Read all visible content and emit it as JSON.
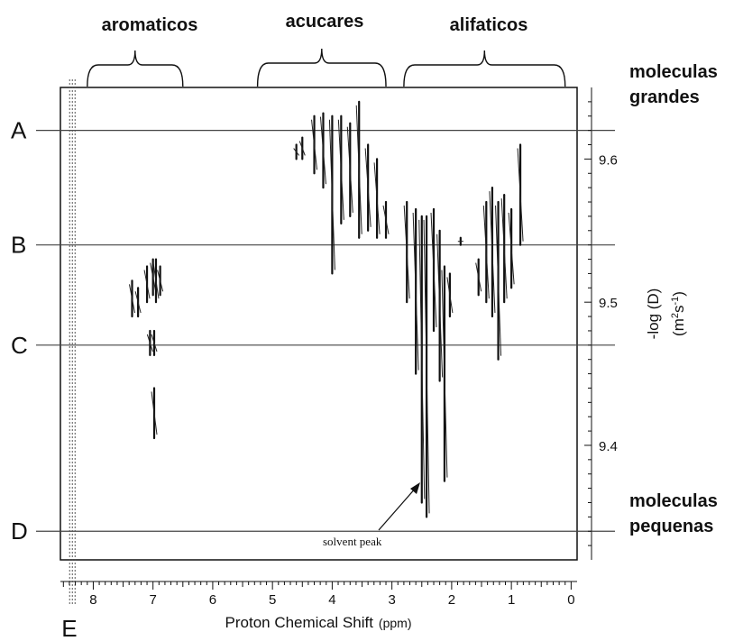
{
  "chart_data": {
    "type": "scatter",
    "xlabel": "Proton Chemical Shift",
    "xunit": "(ppm)",
    "ylabel": "-log (D)",
    "yunit_base": "(m",
    "yunit_sup1": "2",
    "yunit_mid": "s",
    "yunit_sup2": "-1",
    "yunit_end": ")",
    "xlim": [
      8.55,
      -0.1
    ],
    "ylim": [
      9.32,
      9.65
    ],
    "x_reversed": true,
    "x_ticks": [
      8,
      7,
      6,
      5,
      4,
      3,
      2,
      1,
      0
    ],
    "y_ticks": [
      9.6,
      9.5,
      9.4
    ],
    "regions": [
      {
        "label": "aromaticos",
        "x_from": 8.1,
        "x_to": 6.5
      },
      {
        "label": "acucares",
        "x_from": 5.25,
        "x_to": 3.1
      },
      {
        "label": "alifaticos",
        "x_from": 2.8,
        "x_to": 0.1
      }
    ],
    "reference_lines": [
      {
        "label": "A",
        "y": 9.62
      },
      {
        "label": "B",
        "y": 9.54
      },
      {
        "label": "C",
        "y": 9.47
      },
      {
        "label": "D",
        "y": 9.34
      }
    ],
    "vertical_marker": {
      "label": "E",
      "x": 8.35
    },
    "side_labels": {
      "top_line1": "moleculas",
      "top_line2": "grandes",
      "bottom_line1": "moleculas",
      "bottom_line2": "pequenas"
    },
    "annotation": {
      "text": "solvent peak",
      "x": 2.45,
      "y": 9.35
    },
    "peaks": [
      {
        "x": 7.35,
        "y_from": 9.49,
        "y_to": 9.515
      },
      {
        "x": 7.25,
        "y_from": 9.49,
        "y_to": 9.51
      },
      {
        "x": 7.1,
        "y_from": 9.5,
        "y_to": 9.525
      },
      {
        "x": 7.0,
        "y_from": 9.505,
        "y_to": 9.53
      },
      {
        "x": 6.95,
        "y_from": 9.5,
        "y_to": 9.53
      },
      {
        "x": 6.88,
        "y_from": 9.505,
        "y_to": 9.525
      },
      {
        "x": 7.05,
        "y_from": 9.463,
        "y_to": 9.48
      },
      {
        "x": 6.98,
        "y_from": 9.463,
        "y_to": 9.48
      },
      {
        "x": 6.98,
        "y_from": 9.405,
        "y_to": 9.44
      },
      {
        "x": 4.6,
        "y_from": 9.6,
        "y_to": 9.61
      },
      {
        "x": 4.5,
        "y_from": 9.6,
        "y_to": 9.615
      },
      {
        "x": 4.3,
        "y_from": 9.59,
        "y_to": 9.63
      },
      {
        "x": 4.15,
        "y_from": 9.58,
        "y_to": 9.632
      },
      {
        "x": 4.0,
        "y_from": 9.52,
        "y_to": 9.63
      },
      {
        "x": 3.85,
        "y_from": 9.555,
        "y_to": 9.63
      },
      {
        "x": 3.7,
        "y_from": 9.56,
        "y_to": 9.625
      },
      {
        "x": 3.55,
        "y_from": 9.545,
        "y_to": 9.64
      },
      {
        "x": 3.4,
        "y_from": 9.55,
        "y_to": 9.61
      },
      {
        "x": 3.25,
        "y_from": 9.545,
        "y_to": 9.6
      },
      {
        "x": 3.1,
        "y_from": 9.545,
        "y_to": 9.57
      },
      {
        "x": 2.75,
        "y_from": 9.5,
        "y_to": 9.57
      },
      {
        "x": 2.6,
        "y_from": 9.45,
        "y_to": 9.565
      },
      {
        "x": 2.5,
        "y_from": 9.36,
        "y_to": 9.56
      },
      {
        "x": 2.42,
        "y_from": 9.35,
        "y_to": 9.56
      },
      {
        "x": 2.3,
        "y_from": 9.48,
        "y_to": 9.565
      },
      {
        "x": 2.2,
        "y_from": 9.445,
        "y_to": 9.55
      },
      {
        "x": 2.12,
        "y_from": 9.375,
        "y_to": 9.525
      },
      {
        "x": 2.03,
        "y_from": 9.49,
        "y_to": 9.52
      },
      {
        "x": 1.85,
        "y_from": 9.54,
        "y_to": 9.545
      },
      {
        "x": 1.55,
        "y_from": 9.505,
        "y_to": 9.53
      },
      {
        "x": 1.42,
        "y_from": 9.5,
        "y_to": 9.57
      },
      {
        "x": 1.32,
        "y_from": 9.49,
        "y_to": 9.58
      },
      {
        "x": 1.22,
        "y_from": 9.46,
        "y_to": 9.57
      },
      {
        "x": 1.12,
        "y_from": 9.5,
        "y_to": 9.575
      },
      {
        "x": 1.0,
        "y_from": 9.51,
        "y_to": 9.565
      },
      {
        "x": 0.85,
        "y_from": 9.54,
        "y_to": 9.61
      }
    ]
  }
}
